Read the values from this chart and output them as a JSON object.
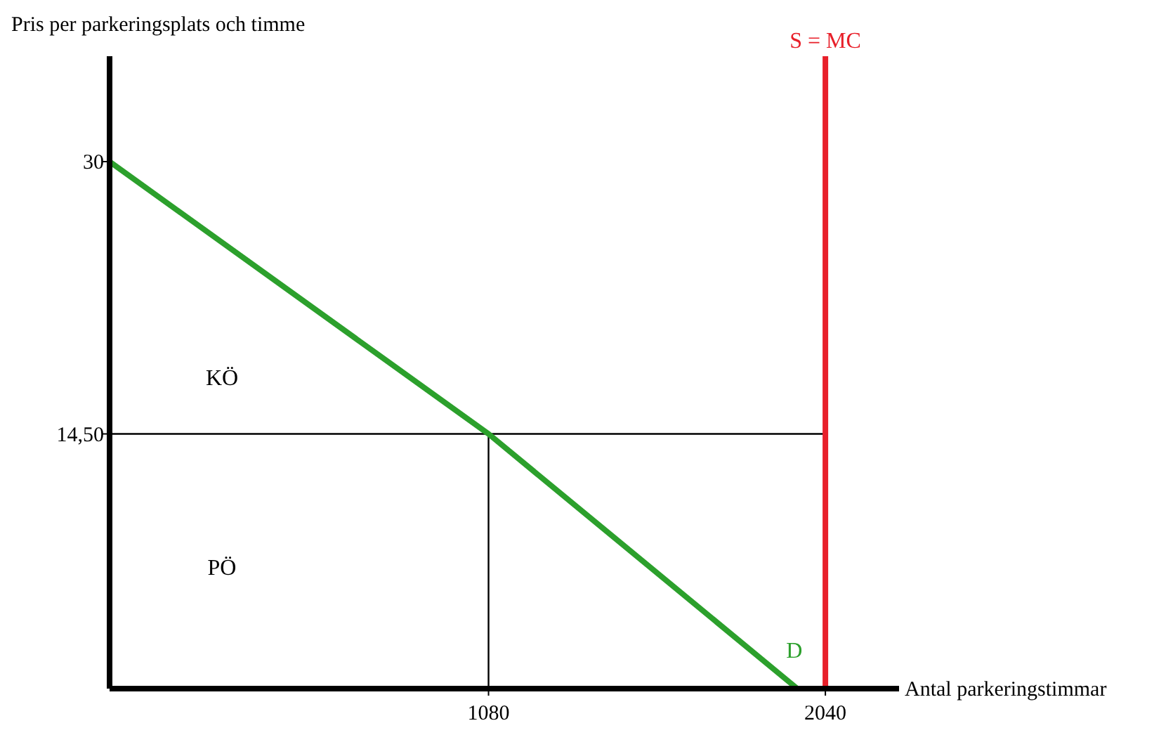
{
  "chart_data": {
    "type": "line",
    "xlabel": "Antal parkeringstimmar",
    "ylabel": "Pris per parkeringsplats och timme",
    "xlim": [
      0,
      2250
    ],
    "ylim": [
      0,
      36
    ],
    "xticks": [
      1080,
      2040
    ],
    "yticks": [
      30,
      {
        "value": 14.5,
        "label": "14,50"
      }
    ],
    "grid": false,
    "marker": "none",
    "line_style": "solid",
    "series": [
      {
        "name": "D",
        "color": "#2ca02c",
        "x": [
          0,
          1080,
          1960
        ],
        "values": [
          30,
          14.5,
          0
        ]
      },
      {
        "name": "S = MC",
        "color": "#e8202a",
        "x": [
          2040,
          2040
        ],
        "values": [
          0,
          36
        ]
      },
      {
        "color": "#000000",
        "x": [
          0,
          2040
        ],
        "values": [
          14.5,
          14.5
        ]
      },
      {
        "color": "#000000",
        "x": [
          1080,
          1080
        ],
        "values": [
          0,
          14.5
        ]
      }
    ],
    "annotations": [
      "KÖ",
      "PÖ"
    ]
  }
}
